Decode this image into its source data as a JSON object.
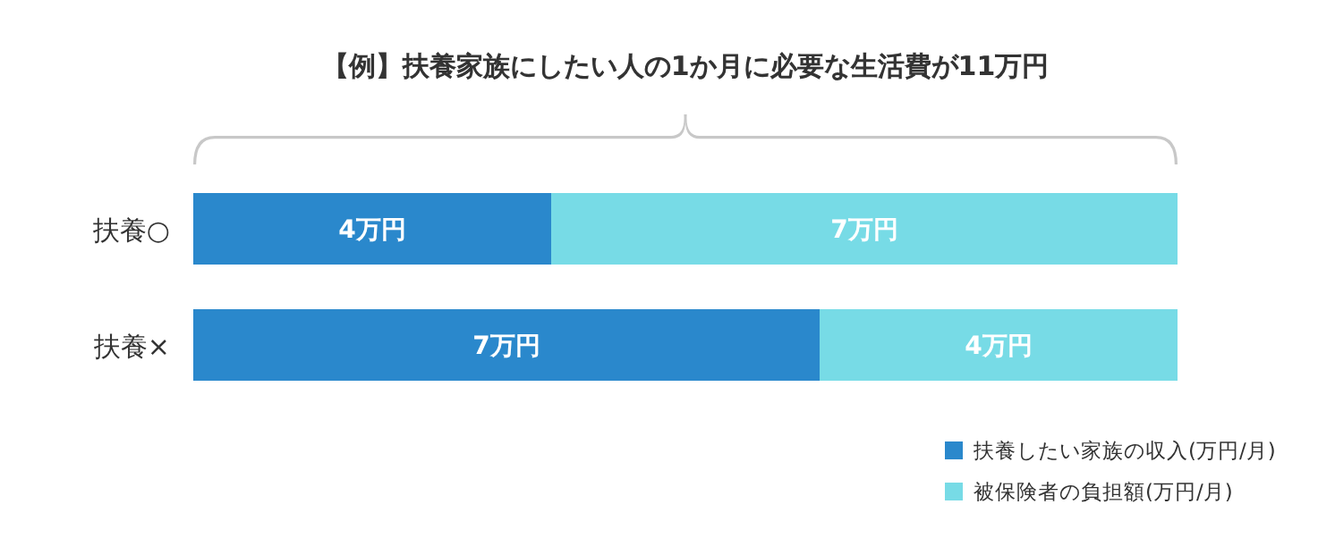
{
  "chart_data": {
    "type": "bar",
    "orientation": "horizontal",
    "stacked": true,
    "title": "【例】扶養家族にしたい人の1か月に必要な生活費が11万円",
    "categories": [
      "扶養○",
      "扶養×"
    ],
    "series": [
      {
        "name": "扶養したい家族の収入(万円/月)",
        "color": "#2a88cc",
        "values": [
          4,
          7
        ],
        "value_labels": [
          "4万円",
          "7万円"
        ]
      },
      {
        "name": "被保険者の負担額(万円/月)",
        "color": "#77dbe6",
        "values": [
          7,
          4
        ],
        "value_labels": [
          "7万円",
          "4万円"
        ]
      }
    ],
    "legend": "bottom right"
  }
}
